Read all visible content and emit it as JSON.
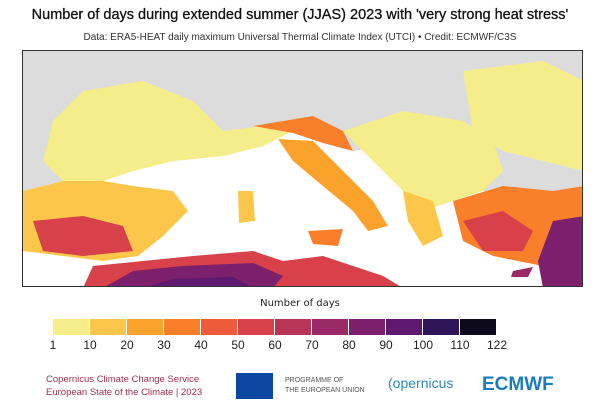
{
  "title": "Number of days during extended summer (JJAS) 2023 with 'very strong heat stress'",
  "subtitle": "Data: ERA5-HEAT daily maximum Universal Thermal Climate Index (UTCI) • Credit: ECMWF/C3S",
  "legend": {
    "title": "Number of days",
    "ticks": [
      "1",
      "10",
      "20",
      "30",
      "40",
      "50",
      "60",
      "70",
      "80",
      "90",
      "100",
      "110",
      "122"
    ],
    "colors": [
      "#f5ed8a",
      "#fcc64a",
      "#fba22c",
      "#f97f2a",
      "#ef5a3a",
      "#d8404a",
      "#b93558",
      "#9a2a67",
      "#7c1f6c",
      "#5d1870",
      "#2e1458",
      "#0d0a1e"
    ]
  },
  "logos": {
    "c3s_line1": "Copernicus Climate Change Service",
    "c3s_line2": "European State of the Climate | 2023",
    "eu_line1": "PROGRAMME OF",
    "eu_line2": "THE EUROPEAN UNION",
    "copernicus": "opernicus",
    "ecmwf": "ECMWF"
  }
}
